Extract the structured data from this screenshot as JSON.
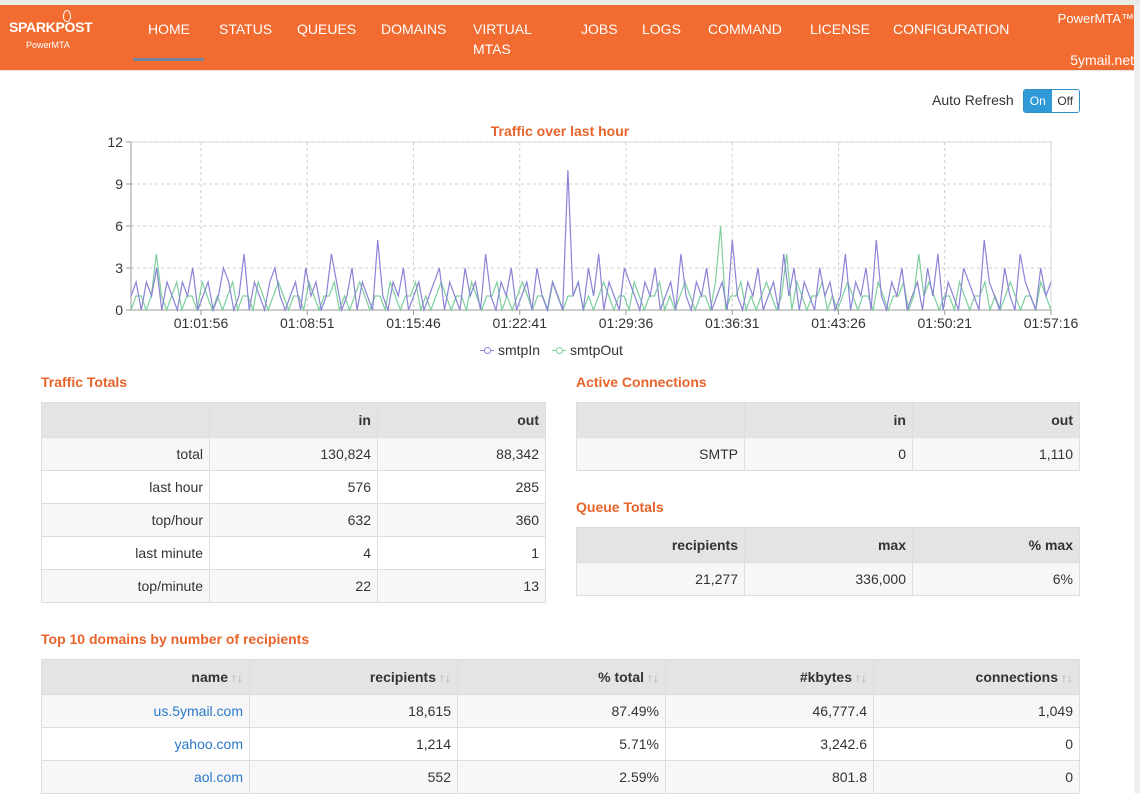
{
  "nav": {
    "brand": "SPARKPOST",
    "brand_sub": "PowerMTA",
    "items": [
      {
        "label": "HOME"
      },
      {
        "label": "STATUS"
      },
      {
        "label": "QUEUES"
      },
      {
        "label": "DOMAINS"
      },
      {
        "label": "VIRTUAL MTAS"
      },
      {
        "label": "JOBS"
      },
      {
        "label": "LOGS"
      },
      {
        "label": "COMMAND"
      },
      {
        "label": "LICENSE"
      },
      {
        "label": "CONFIGURATION"
      }
    ],
    "active": "HOME",
    "product": "PowerMTA™",
    "host": "5ymail.net"
  },
  "auto_refresh": {
    "label": "Auto Refresh",
    "on": "On",
    "off": "Off",
    "state": "On"
  },
  "chart_data": {
    "type": "line",
    "title": "Traffic over last hour",
    "x_ticks": [
      "01:01:56",
      "01:08:51",
      "01:15:46",
      "01:22:41",
      "01:29:36",
      "01:36:31",
      "01:43:26",
      "01:50:21",
      "01:57:16"
    ],
    "y_ticks": [
      0,
      3,
      6,
      9,
      12
    ],
    "ylim": [
      0,
      12
    ],
    "grid": true,
    "legend_position": "bottom",
    "series": [
      {
        "name": "smtpIn",
        "color": "#8a84d6",
        "values": [
          1,
          2,
          0,
          2,
          1,
          3,
          0,
          2,
          1,
          0,
          2,
          1,
          3,
          0,
          1,
          2,
          0,
          1,
          3,
          2,
          0,
          1,
          4,
          0,
          2,
          1,
          0,
          2,
          3,
          1,
          0,
          1,
          2,
          0,
          3,
          1,
          2,
          0,
          1,
          4,
          2,
          0,
          1,
          3,
          0,
          2,
          1,
          0,
          5,
          1,
          0,
          2,
          1,
          3,
          0,
          1,
          2,
          0,
          1,
          2,
          3,
          0,
          2,
          1,
          0,
          3,
          1,
          2,
          0,
          4,
          1,
          0,
          2,
          1,
          3,
          0,
          1,
          2,
          0,
          3,
          1,
          0,
          2,
          1,
          0,
          10,
          1,
          2,
          0,
          3,
          1,
          4,
          0,
          2,
          1,
          0,
          3,
          2,
          1,
          0,
          2,
          1,
          3,
          0,
          1,
          2,
          0,
          4,
          1,
          0,
          2,
          1,
          3,
          0,
          1,
          2,
          0,
          5,
          1,
          0,
          2,
          1,
          3,
          0,
          1,
          2,
          0,
          4,
          1,
          3,
          0,
          2,
          1,
          0,
          3,
          1,
          2,
          0,
          1,
          4,
          0,
          2,
          1,
          3,
          0,
          5,
          1,
          0,
          2,
          1,
          3,
          0,
          1,
          2,
          0,
          3,
          1,
          4,
          0,
          2,
          1,
          0,
          3,
          2,
          1,
          0,
          5,
          2,
          1,
          0,
          3,
          1,
          0,
          4,
          2,
          1,
          0,
          3,
          1,
          2
        ]
      },
      {
        "name": "smtpOut",
        "color": "#7fcf9e",
        "values": [
          0,
          1,
          1,
          0,
          1,
          4,
          1,
          0,
          1,
          2,
          0,
          1,
          1,
          0,
          2,
          1,
          0,
          1,
          0,
          1,
          2,
          0,
          1,
          1,
          0,
          2,
          1,
          0,
          1,
          2,
          1,
          0,
          1,
          1,
          0,
          2,
          1,
          0,
          1,
          1,
          2,
          0,
          1,
          0,
          1,
          2,
          1,
          0,
          1,
          1,
          0,
          2,
          1,
          0,
          1,
          1,
          2,
          0,
          1,
          0,
          1,
          2,
          1,
          0,
          1,
          1,
          0,
          2,
          1,
          0,
          1,
          1,
          2,
          0,
          1,
          0,
          1,
          2,
          1,
          0,
          1,
          1,
          0,
          2,
          1,
          0,
          1,
          1,
          2,
          0,
          1,
          0,
          1,
          2,
          1,
          0,
          1,
          1,
          0,
          2,
          1,
          0,
          1,
          1,
          2,
          0,
          1,
          0,
          1,
          2,
          1,
          0,
          1,
          1,
          0,
          2,
          6,
          0,
          1,
          1,
          2,
          0,
          1,
          0,
          1,
          2,
          1,
          0,
          1,
          4,
          0,
          2,
          1,
          0,
          1,
          1,
          2,
          0,
          1,
          0,
          1,
          2,
          1,
          0,
          1,
          1,
          0,
          2,
          1,
          0,
          1,
          1,
          2,
          0,
          1,
          4,
          1,
          2,
          1,
          0,
          1,
          1,
          0,
          2,
          1,
          0,
          1,
          1,
          2,
          0,
          1,
          0,
          1,
          2,
          1,
          0,
          1,
          1,
          0,
          2,
          1,
          0
        ]
      }
    ]
  },
  "traffic_totals": {
    "title": "Traffic Totals",
    "columns": [
      "",
      "in",
      "out"
    ],
    "rows": [
      [
        "total",
        "130,824",
        "88,342"
      ],
      [
        "last hour",
        "576",
        "285"
      ],
      [
        "top/hour",
        "632",
        "360"
      ],
      [
        "last minute",
        "4",
        "1"
      ],
      [
        "top/minute",
        "22",
        "13"
      ]
    ]
  },
  "active_connections": {
    "title": "Active Connections",
    "columns": [
      "",
      "in",
      "out"
    ],
    "rows": [
      [
        "SMTP",
        "0",
        "1,110"
      ]
    ]
  },
  "queue_totals": {
    "title": "Queue Totals",
    "columns": [
      "recipients",
      "max",
      "% max"
    ],
    "rows": [
      [
        "21,277",
        "336,000",
        "6%"
      ]
    ]
  },
  "top_domains": {
    "title": "Top 10 domains by number of recipients",
    "columns": [
      "name",
      "recipients",
      "% total",
      "#kbytes",
      "connections"
    ],
    "sort_glyph": "↑↓",
    "rows": [
      [
        "us.5ymail.com",
        "18,615",
        "87.49%",
        "46,777.4",
        "1,049"
      ],
      [
        "yahoo.com",
        "1,214",
        "5.71%",
        "3,242.6",
        "0"
      ],
      [
        "aol.com",
        "552",
        "2.59%",
        "801.8",
        "0"
      ]
    ]
  }
}
